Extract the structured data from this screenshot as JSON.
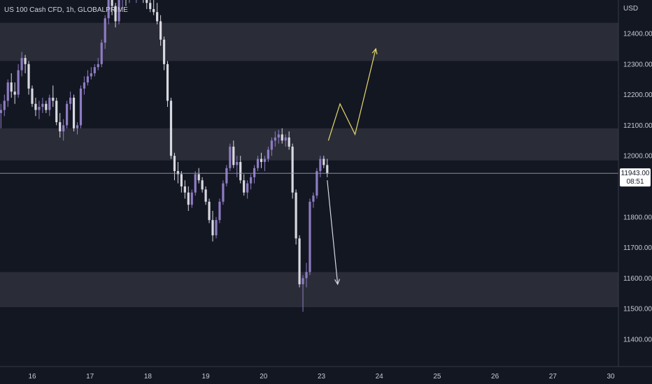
{
  "header": {
    "symbol_title": "US 100 Cash CFD, 1h, GLOBALPRIME"
  },
  "price_axis": {
    "currency": "USD",
    "last_price": "11943.00",
    "countdown": "08:51"
  },
  "colors": {
    "background": "#131722",
    "zone": "#2a2d38",
    "bull": "#8e7cc3",
    "bear": "#d8d8e0",
    "projection_up": "#e6d96b",
    "projection_down": "#d8d8e0",
    "axis_text": "#c8cbd3"
  },
  "chart_data": {
    "type": "candlestick",
    "title": "US 100 Cash CFD, 1h, GLOBALPRIME",
    "ylabel": "USD",
    "ylim": [
      11330,
      12570
    ],
    "yticks": [
      12400,
      12300,
      12200,
      12100,
      12000,
      11800,
      11700,
      11600,
      11500,
      11400
    ],
    "ytick_labels": [
      "12400.00",
      "12300.00",
      "12200.00",
      "12100.00",
      "12000.00",
      "11800.00",
      "11700.00",
      "11600.00",
      "11500.00",
      "11400.00"
    ],
    "xticks": [
      {
        "label": "16",
        "pos": 16
      },
      {
        "label": "17",
        "pos": 17
      },
      {
        "label": "18",
        "pos": 18
      },
      {
        "label": "19",
        "pos": 19
      },
      {
        "label": "20",
        "pos": 20
      },
      {
        "label": "23",
        "pos": 21
      },
      {
        "label": "24",
        "pos": 22
      },
      {
        "label": "25",
        "pos": 23
      },
      {
        "label": "26",
        "pos": 24
      },
      {
        "label": "27",
        "pos": 25
      },
      {
        "label": "30",
        "pos": 26
      }
    ],
    "xlim": [
      15.45,
      26.25
    ],
    "last_price": 11943,
    "zones": [
      {
        "low": 12310,
        "high": 12435
      },
      {
        "low": 11985,
        "high": 12090
      },
      {
        "low": 11505,
        "high": 11620
      }
    ],
    "candles": [
      [
        15.46,
        12140,
        12170,
        12090,
        12150
      ],
      [
        15.52,
        12150,
        12200,
        12130,
        12180
      ],
      [
        15.58,
        12180,
        12250,
        12160,
        12240
      ],
      [
        15.64,
        12240,
        12270,
        12190,
        12210
      ],
      [
        15.7,
        12210,
        12240,
        12170,
        12200
      ],
      [
        15.76,
        12200,
        12300,
        12190,
        12280
      ],
      [
        15.82,
        12280,
        12340,
        12260,
        12320
      ],
      [
        15.88,
        12320,
        12330,
        12270,
        12300
      ],
      [
        15.94,
        12300,
        12310,
        12200,
        12220
      ],
      [
        16.0,
        12220,
        12230,
        12160,
        12170
      ],
      [
        16.06,
        12170,
        12190,
        12130,
        12150
      ],
      [
        16.12,
        12150,
        12180,
        12120,
        12160
      ],
      [
        16.18,
        12160,
        12190,
        12140,
        12170
      ],
      [
        16.24,
        12170,
        12180,
        12140,
        12150
      ],
      [
        16.3,
        12150,
        12200,
        12130,
        12190
      ],
      [
        16.36,
        12190,
        12230,
        12160,
        12180
      ],
      [
        16.42,
        12180,
        12190,
        12100,
        12110
      ],
      [
        16.48,
        12110,
        12140,
        12060,
        12080
      ],
      [
        16.54,
        12080,
        12120,
        12050,
        12100
      ],
      [
        16.6,
        12100,
        12180,
        12090,
        12170
      ],
      [
        16.66,
        12170,
        12210,
        12150,
        12190
      ],
      [
        16.72,
        12190,
        12200,
        12080,
        12090
      ],
      [
        16.78,
        12090,
        12110,
        12070,
        12100
      ],
      [
        16.84,
        12100,
        12230,
        12090,
        12220
      ],
      [
        16.9,
        12220,
        12260,
        12200,
        12240
      ],
      [
        16.96,
        12240,
        12280,
        12230,
        12260
      ],
      [
        17.02,
        12260,
        12290,
        12250,
        12270
      ],
      [
        17.08,
        12270,
        12300,
        12260,
        12290
      ],
      [
        17.14,
        12290,
        12320,
        12280,
        12300
      ],
      [
        17.2,
        12300,
        12380,
        12290,
        12370
      ],
      [
        17.26,
        12370,
        12460,
        12350,
        12450
      ],
      [
        17.32,
        12450,
        12520,
        12430,
        12510
      ],
      [
        17.38,
        12510,
        12540,
        12460,
        12490
      ],
      [
        17.44,
        12490,
        12500,
        12420,
        12440
      ],
      [
        17.5,
        12440,
        12530,
        12430,
        12510
      ],
      [
        17.56,
        12510,
        12560,
        12480,
        12540
      ],
      [
        17.62,
        12540,
        12560,
        12490,
        12520
      ],
      [
        17.68,
        12520,
        12560,
        12500,
        12550
      ],
      [
        17.74,
        12550,
        12565,
        12510,
        12530
      ],
      [
        17.8,
        12530,
        12550,
        12500,
        12540
      ],
      [
        17.86,
        12540,
        12560,
        12520,
        12530
      ],
      [
        17.92,
        12530,
        12560,
        12500,
        12520
      ],
      [
        17.98,
        12520,
        12540,
        12480,
        12500
      ],
      [
        18.04,
        12500,
        12520,
        12470,
        12480
      ],
      [
        18.1,
        12480,
        12520,
        12460,
        12470
      ],
      [
        18.16,
        12470,
        12500,
        12430,
        12440
      ],
      [
        18.22,
        12440,
        12460,
        12360,
        12380
      ],
      [
        18.28,
        12380,
        12390,
        12280,
        12300
      ],
      [
        18.34,
        12300,
        12310,
        12160,
        12180
      ],
      [
        18.4,
        12180,
        12190,
        11990,
        12000
      ],
      [
        18.46,
        12000,
        12010,
        11920,
        11950
      ],
      [
        18.52,
        11950,
        11980,
        11910,
        11940
      ],
      [
        18.58,
        11940,
        11950,
        11880,
        11900
      ],
      [
        18.64,
        11900,
        11920,
        11860,
        11880
      ],
      [
        18.7,
        11880,
        11900,
        11820,
        11840
      ],
      [
        18.76,
        11840,
        11890,
        11830,
        11880
      ],
      [
        18.82,
        11880,
        11950,
        11870,
        11940
      ],
      [
        18.88,
        11940,
        11960,
        11910,
        11920
      ],
      [
        18.94,
        11920,
        11930,
        11880,
        11890
      ],
      [
        19.0,
        11890,
        11900,
        11840,
        11850
      ],
      [
        19.06,
        11850,
        11860,
        11780,
        11790
      ],
      [
        19.12,
        11790,
        11820,
        11720,
        11740
      ],
      [
        19.18,
        11740,
        11800,
        11730,
        11790
      ],
      [
        19.24,
        11790,
        11860,
        11780,
        11850
      ],
      [
        19.3,
        11850,
        11920,
        11840,
        11910
      ],
      [
        19.36,
        11910,
        11970,
        11900,
        11960
      ],
      [
        19.42,
        11960,
        12040,
        11950,
        12030
      ],
      [
        19.48,
        12030,
        12050,
        11960,
        11970
      ],
      [
        19.54,
        11970,
        12000,
        11930,
        11980
      ],
      [
        19.6,
        11980,
        12000,
        11910,
        11920
      ],
      [
        19.66,
        11920,
        11940,
        11870,
        11880
      ],
      [
        19.72,
        11880,
        11920,
        11860,
        11910
      ],
      [
        19.78,
        11910,
        11940,
        11890,
        11930
      ],
      [
        19.84,
        11930,
        11970,
        11910,
        11960
      ],
      [
        19.9,
        11960,
        12000,
        11950,
        11990
      ],
      [
        19.96,
        11990,
        12010,
        11960,
        11980
      ],
      [
        20.02,
        11980,
        12000,
        11950,
        11990
      ],
      [
        20.08,
        11990,
        12030,
        11980,
        12020
      ],
      [
        20.14,
        12020,
        12060,
        12000,
        12050
      ],
      [
        20.2,
        12050,
        12080,
        12030,
        12060
      ],
      [
        20.26,
        12060,
        12085,
        12040,
        12070
      ],
      [
        20.32,
        12070,
        12090,
        12040,
        12050
      ],
      [
        20.38,
        12050,
        12070,
        12030,
        12060
      ],
      [
        20.44,
        12060,
        12080,
        12020,
        12030
      ],
      [
        20.5,
        12030,
        12040,
        11860,
        11880
      ],
      [
        20.56,
        11880,
        11890,
        11710,
        11730
      ],
      [
        20.62,
        11730,
        11740,
        11570,
        11580
      ],
      [
        20.68,
        11580,
        11610,
        11490,
        11600
      ],
      [
        20.74,
        11600,
        11650,
        11570,
        11620
      ],
      [
        20.8,
        11620,
        11860,
        11610,
        11850
      ],
      [
        20.86,
        11850,
        11880,
        11830,
        11870
      ],
      [
        20.92,
        11870,
        11960,
        11860,
        11950
      ],
      [
        20.98,
        11950,
        12000,
        11930,
        11990
      ],
      [
        21.04,
        11990,
        12000,
        11960,
        11970
      ],
      [
        21.1,
        11970,
        11990,
        11930,
        11943
      ]
    ],
    "projection_up": [
      [
        21.12,
        12050
      ],
      [
        21.32,
        12170
      ],
      [
        21.58,
        12070
      ],
      [
        21.94,
        12350
      ]
    ],
    "projection_down": [
      [
        21.1,
        11920
      ],
      [
        21.28,
        11580
      ]
    ]
  }
}
